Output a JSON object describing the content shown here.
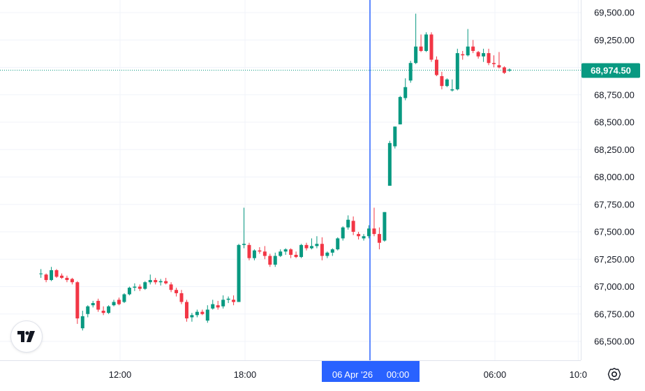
{
  "chart_data": {
    "type": "candlestick",
    "price_axis": {
      "ticks": [
        "69,500.00",
        "69,250.00",
        "68,750.00",
        "68,500.00",
        "68,250.00",
        "68,000.00",
        "67,750.00",
        "67,500.00",
        "67,250.00",
        "67,000.00",
        "66,750.00",
        "66,500.00"
      ],
      "range": [
        66400,
        69560
      ]
    },
    "time_axis": {
      "ticks": [
        {
          "label": "12:00",
          "hour": 12
        },
        {
          "label": "18:00",
          "hour": 18
        },
        {
          "label": "00:00",
          "hour": 24
        },
        {
          "label": "06:00",
          "hour": 30
        },
        {
          "label": "10:0",
          "hour": 34
        }
      ]
    },
    "last_price": {
      "label": "68,974.50",
      "value": 68974.5
    },
    "crosshair": {
      "date_label": "06 Apr '26",
      "time_label": "00:00",
      "hour": 24
    },
    "colors": {
      "up": "#089981",
      "down": "#f23645",
      "crosshair": "#2962ff",
      "last_price": "#089981"
    },
    "candle_hours_start": 8.2,
    "candle_interval_hours": 0.25,
    "candles": [
      [
        67120,
        67160,
        67080,
        67120
      ],
      [
        67110,
        67120,
        67040,
        67060
      ],
      [
        67060,
        67180,
        67050,
        67150
      ],
      [
        67150,
        67160,
        67080,
        67090
      ],
      [
        67100,
        67120,
        67070,
        67080
      ],
      [
        67080,
        67100,
        67040,
        67060
      ],
      [
        67070,
        67080,
        67020,
        67040
      ],
      [
        67040,
        67050,
        66660,
        66710
      ],
      [
        66620,
        66780,
        66600,
        66730
      ],
      [
        66750,
        66830,
        66720,
        66820
      ],
      [
        66830,
        66870,
        66810,
        66850
      ],
      [
        66870,
        66890,
        66770,
        66790
      ],
      [
        66780,
        66820,
        66740,
        66760
      ],
      [
        66760,
        66830,
        66750,
        66820
      ],
      [
        66830,
        66880,
        66820,
        66860
      ],
      [
        66880,
        66900,
        66830,
        66840
      ],
      [
        66860,
        66940,
        66850,
        66930
      ],
      [
        66930,
        67000,
        66920,
        66990
      ],
      [
        66990,
        67030,
        66960,
        67000
      ],
      [
        67000,
        67020,
        66960,
        66980
      ],
      [
        66980,
        67050,
        66970,
        67040
      ],
      [
        67040,
        67110,
        67020,
        67060
      ],
      [
        67060,
        67080,
        67020,
        67040
      ],
      [
        67040,
        67070,
        67010,
        67050
      ],
      [
        67050,
        67080,
        67020,
        67030
      ],
      [
        67020,
        67040,
        66950,
        66970
      ],
      [
        66970,
        66990,
        66910,
        66940
      ],
      [
        66940,
        66970,
        66840,
        66860
      ],
      [
        66860,
        66880,
        66680,
        66710
      ],
      [
        66720,
        66760,
        66680,
        66740
      ],
      [
        66740,
        66790,
        66720,
        66770
      ],
      [
        66770,
        66790,
        66740,
        66750
      ],
      [
        66690,
        66830,
        66670,
        66790
      ],
      [
        66800,
        66880,
        66790,
        66840
      ],
      [
        66830,
        66870,
        66790,
        66810
      ],
      [
        66820,
        66920,
        66800,
        66880
      ],
      [
        66880,
        66910,
        66850,
        66890
      ],
      [
        66880,
        66920,
        66830,
        66860
      ],
      [
        66860,
        67390,
        66860,
        67380
      ],
      [
        67380,
        67720,
        67350,
        67390
      ],
      [
        67380,
        67400,
        67240,
        67260
      ],
      [
        67260,
        67340,
        67240,
        67330
      ],
      [
        67330,
        67360,
        67300,
        67320
      ],
      [
        67320,
        67370,
        67250,
        67280
      ],
      [
        67280,
        67300,
        67180,
        67200
      ],
      [
        67200,
        67310,
        67180,
        67280
      ],
      [
        67280,
        67340,
        67270,
        67320
      ],
      [
        67320,
        67350,
        67290,
        67340
      ],
      [
        67340,
        67350,
        67260,
        67290
      ],
      [
        67290,
        67320,
        67260,
        67270
      ],
      [
        67270,
        67390,
        67260,
        67380
      ],
      [
        67380,
        67400,
        67330,
        67350
      ],
      [
        67350,
        67440,
        67340,
        67370
      ],
      [
        67370,
        67460,
        67350,
        67390
      ],
      [
        67390,
        67450,
        67240,
        67280
      ],
      [
        67280,
        67320,
        67260,
        67310
      ],
      [
        67310,
        67350,
        67280,
        67340
      ],
      [
        67340,
        67450,
        67330,
        67440
      ],
      [
        67440,
        67550,
        67420,
        67540
      ],
      [
        67540,
        67650,
        67520,
        67610
      ],
      [
        67600,
        67640,
        67470,
        67500
      ],
      [
        67480,
        67500,
        67430,
        67460
      ],
      [
        67440,
        67480,
        67420,
        67460
      ],
      [
        67460,
        67560,
        67440,
        67530
      ],
      [
        67530,
        67720,
        67460,
        67480
      ],
      [
        67480,
        67540,
        67340,
        67400
      ],
      [
        67420,
        67680,
        67410,
        67680
      ],
      [
        67920,
        68330,
        67920,
        68310
      ],
      [
        68280,
        68460,
        68260,
        68460
      ],
      [
        68480,
        68740,
        68480,
        68730
      ],
      [
        68720,
        68900,
        68700,
        68820
      ],
      [
        68880,
        69060,
        68860,
        69040
      ],
      [
        69040,
        69490,
        69030,
        69190
      ],
      [
        69190,
        69300,
        69140,
        69150
      ],
      [
        69150,
        69320,
        69140,
        69300
      ],
      [
        69300,
        69320,
        69050,
        69070
      ],
      [
        69070,
        69100,
        68920,
        68930
      ],
      [
        68920,
        68960,
        68800,
        68830
      ],
      [
        68830,
        68900,
        68820,
        68890
      ],
      [
        68790,
        68890,
        68780,
        68800
      ],
      [
        68800,
        69170,
        68790,
        69130
      ],
      [
        69120,
        69150,
        69070,
        69110
      ],
      [
        69110,
        69350,
        69100,
        69190
      ],
      [
        69190,
        69250,
        69130,
        69150
      ],
      [
        69140,
        69150,
        69080,
        69100
      ],
      [
        69100,
        69170,
        69050,
        69130
      ],
      [
        69130,
        69170,
        69020,
        69040
      ],
      [
        69040,
        69110,
        69000,
        69030
      ],
      [
        69020,
        69140,
        68990,
        69000
      ],
      [
        69000,
        69010,
        68940,
        68950
      ],
      [
        68970,
        68990,
        68960,
        68980
      ]
    ]
  }
}
